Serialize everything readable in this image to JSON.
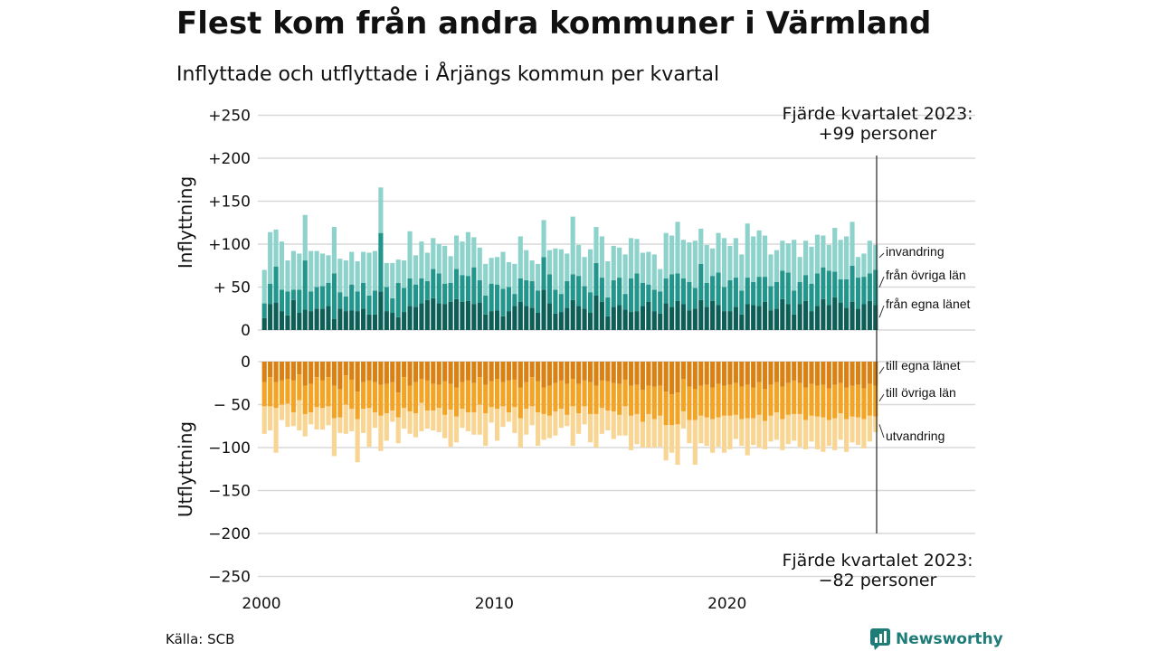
{
  "title": "Flest kom från andra kommuner i Värmland",
  "subtitle": "Inflyttade och utflyttade i Årjängs kommun per kvartal",
  "source": "Källa: SCB",
  "brand": "Newsworthy",
  "annotation_top": {
    "line1": "Fjärde kvartalet 2023:",
    "line2": "+99 personer"
  },
  "annotation_bottom": {
    "line1": "Fjärde kvartalet 2023:",
    "line2": "−82 personer"
  },
  "colors": {
    "in_county": "#0d5e57",
    "in_other": "#22968c",
    "in_immig": "#8dd3cc",
    "out_county": "#d98112",
    "out_other": "#f3a425",
    "out_emig": "#f8d592",
    "grid": "#d9d9d9",
    "text": "#111111",
    "brand": "#1f7d78"
  },
  "chart_data": {
    "type": "bar",
    "stacked": true,
    "x_start": 2000,
    "period": "quarter",
    "x_ticks": [
      "2000",
      "2010",
      "2020"
    ],
    "panels": [
      {
        "label": "Inflyttning",
        "ylim": [
          0,
          250
        ],
        "y_ticks": [
          "0",
          "+ 50",
          "+100",
          "+150",
          "+200",
          "+250"
        ],
        "y_tick_values": [
          0,
          50,
          100,
          150,
          200,
          250
        ],
        "legend": [
          "invandring",
          "från övriga län",
          "från egna länet"
        ],
        "series": [
          {
            "name": "från egna länet",
            "values": [
              14,
              30,
              32,
              22,
              17,
              35,
              20,
              24,
              22,
              25,
              25,
              28,
              13,
              25,
              22,
              23,
              22,
              25,
              18,
              18,
              45,
              22,
              20,
              15,
              21,
              28,
              27,
              31,
              35,
              37,
              31,
              30,
              33,
              36,
              33,
              34,
              30,
              32,
              18,
              22,
              23,
              16,
              22,
              28,
              33,
              28,
              26,
              20,
              47,
              31,
              19,
              21,
              26,
              35,
              28,
              25,
              20,
              40,
              33,
              16,
              27,
              29,
              24,
              21,
              22,
              28,
              33,
              22,
              19,
              31,
              27,
              34,
              30,
              23,
              25,
              35,
              27,
              34,
              29,
              22,
              22,
              27,
              18,
              30,
              29,
              28,
              33,
              23,
              25,
              36,
              30,
              18,
              30,
              34,
              22,
              28,
              36,
              29,
              38,
              32,
              26,
              33,
              25,
              30,
              34,
              29
            ]
          },
          {
            "name": "från övriga län",
            "values": [
              17,
              24,
              42,
              25,
              28,
              12,
              27,
              57,
              23,
              25,
              26,
              27,
              53,
              19,
              17,
              30,
              23,
              30,
              22,
              28,
              68,
              28,
              17,
              40,
              28,
              32,
              26,
              29,
              22,
              34,
              35,
              24,
              22,
              35,
              31,
              29,
              43,
              26,
              22,
              32,
              30,
              32,
              28,
              14,
              27,
              30,
              31,
              26,
              38,
              34,
              28,
              21,
              31,
              30,
              35,
              26,
              24,
              38,
              28,
              22,
              31,
              32,
              18,
              39,
              44,
              27,
              20,
              25,
              26,
              29,
              38,
              32,
              30,
              33,
              24,
              42,
              28,
              29,
              38,
              28,
              36,
              34,
              28,
              31,
              27,
              34,
              29,
              28,
              31,
              33,
              37,
              28,
              26,
              30,
              32,
              38,
              37,
              40,
              30,
              27,
              33,
              42,
              36,
              32,
              32,
              41
            ]
          },
          {
            "name": "invandring",
            "values": [
              39,
              60,
              43,
              56,
              36,
              45,
              42,
              53,
              47,
              42,
              38,
              32,
              54,
              39,
              42,
              38,
              35,
              36,
              50,
              46,
              53,
              28,
              41,
              27,
              32,
              55,
              34,
              43,
              33,
              36,
              34,
              44,
              31,
              39,
              39,
              51,
              35,
              38,
              37,
              30,
              32,
              43,
              29,
              35,
              49,
              35,
              24,
              31,
              43,
              28,
              48,
              52,
              32,
              67,
              36,
              34,
              50,
              42,
              48,
              42,
              40,
              35,
              46,
              47,
              40,
              35,
              38,
              41,
              26,
              53,
              45,
              60,
              45,
              46,
              55,
              41,
              44,
              32,
              46,
              57,
              40,
              46,
              42,
              63,
              53,
              54,
              48,
              37,
              37,
              35,
              34,
              59,
              29,
              40,
              43,
              45,
              37,
              30,
              51,
              46,
              50,
              51,
              24,
              27,
              38,
              29
            ]
          }
        ]
      },
      {
        "label": "Utflyttning",
        "ylim": [
          -250,
          0
        ],
        "y_ticks": [
          "0",
          "− 50",
          "−100",
          "−150",
          "−200",
          "−250"
        ],
        "y_tick_values": [
          0,
          -50,
          -100,
          -150,
          -200,
          -250
        ],
        "legend": [
          "till egna länet",
          "till övriga län",
          "utvandring"
        ],
        "series": [
          {
            "name": "till egna länet",
            "values": [
              -24,
              -18,
              -24,
              -22,
              -20,
              -22,
              -15,
              -28,
              -26,
              -18,
              -22,
              -18,
              -28,
              -32,
              -16,
              -21,
              -35,
              -24,
              -22,
              -24,
              -27,
              -26,
              -24,
              -36,
              -18,
              -28,
              -24,
              -20,
              -22,
              -26,
              -27,
              -23,
              -26,
              -30,
              -24,
              -22,
              -25,
              -18,
              -27,
              -23,
              -20,
              -24,
              -22,
              -21,
              -30,
              -24,
              -18,
              -23,
              -30,
              -28,
              -25,
              -22,
              -26,
              -20,
              -26,
              -22,
              -24,
              -28,
              -22,
              -23,
              -25,
              -26,
              -21,
              -28,
              -27,
              -33,
              -28,
              -29,
              -28,
              -35,
              -38,
              -36,
              -20,
              -29,
              -32,
              -28,
              -27,
              -30,
              -26,
              -28,
              -27,
              -25,
              -29,
              -27,
              -30,
              -24,
              -32,
              -27,
              -24,
              -29,
              -25,
              -22,
              -25,
              -30,
              -26,
              -28,
              -27,
              -31,
              -27,
              -25,
              -30,
              -28,
              -27,
              -31,
              -26,
              -28
            ]
          },
          {
            "name": "till övriga län",
            "values": [
              -28,
              -34,
              -30,
              -28,
              -29,
              -37,
              -30,
              -33,
              -33,
              -35,
              -32,
              -34,
              -38,
              -33,
              -34,
              -34,
              -32,
              -31,
              -32,
              -35,
              -36,
              -34,
              -33,
              -29,
              -36,
              -30,
              -36,
              -28,
              -35,
              -31,
              -27,
              -39,
              -30,
              -34,
              -31,
              -37,
              -34,
              -32,
              -33,
              -30,
              -35,
              -28,
              -37,
              -32,
              -36,
              -31,
              -34,
              -36,
              -31,
              -35,
              -33,
              -33,
              -36,
              -32,
              -34,
              -30,
              -37,
              -33,
              -32,
              -34,
              -33,
              -36,
              -31,
              -35,
              -34,
              -37,
              -33,
              -38,
              -35,
              -39,
              -36,
              -37,
              -38,
              -39,
              -36,
              -35,
              -38,
              -37,
              -39,
              -35,
              -36,
              -37,
              -38,
              -39,
              -36,
              -38,
              -37,
              -36,
              -35,
              -38,
              -37,
              -39,
              -36,
              -38,
              -37,
              -36,
              -38,
              -37,
              -39,
              -35,
              -37,
              -36,
              -38,
              -36,
              -37,
              -36
            ]
          },
          {
            "name": "utvandring",
            "values": [
              -32,
              -28,
              -52,
              -18,
              -27,
              -16,
              -35,
              -26,
              -14,
              -26,
              -25,
              -22,
              -44,
              -18,
              -34,
              -26,
              -50,
              -28,
              -45,
              -18,
              -41,
              -32,
              -13,
              -30,
              -24,
              -26,
              -28,
              -33,
              -21,
              -23,
              -28,
              -27,
              -43,
              -30,
              -22,
              -22,
              -26,
              -35,
              -38,
              -18,
              -37,
              -24,
              -11,
              -30,
              -34,
              -30,
              -22,
              -39,
              -30,
              -26,
              -28,
              -22,
              -13,
              -46,
              -24,
              -21,
              -33,
              -39,
              -30,
              -23,
              -32,
              -24,
              -34,
              -40,
              -35,
              -30,
              -39,
              -33,
              -36,
              -41,
              -32,
              -47,
              -20,
              -27,
              -52,
              -32,
              -33,
              -39,
              -34,
              -43,
              -39,
              -28,
              -31,
              -43,
              -31,
              -38,
              -33,
              -30,
              -32,
              -36,
              -34,
              -31,
              -38,
              -34,
              -30,
              -38,
              -40,
              -30,
              -37,
              -31,
              -38,
              -30,
              -32,
              -34,
              -30,
              -18
            ]
          }
        ]
      }
    ]
  }
}
